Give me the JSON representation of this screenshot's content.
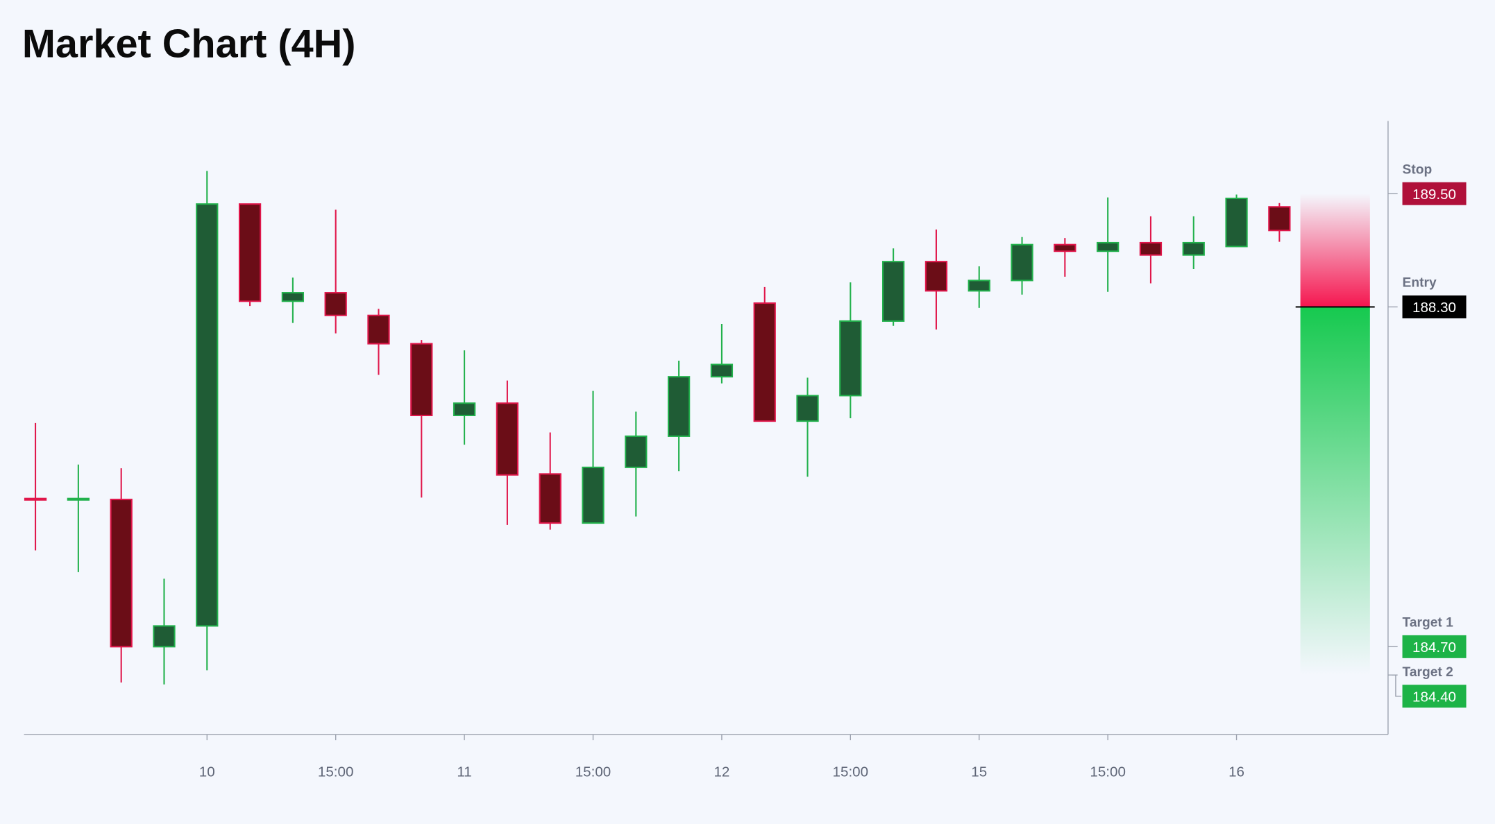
{
  "chart_data": {
    "type": "candlestick",
    "title": "Market Chart (4H)",
    "categories": [
      null,
      null,
      null,
      null,
      "10",
      null,
      null,
      "15:00",
      null,
      null,
      "11",
      null,
      null,
      "15:00",
      null,
      null,
      "12",
      null,
      null,
      "15:00",
      null,
      null,
      "15",
      null,
      null,
      "15:00",
      null,
      null,
      "16",
      null
    ],
    "open": [
      186.27,
      186.26,
      186.26,
      184.7,
      184.92,
      189.39,
      188.36,
      188.45,
      188.21,
      187.91,
      187.15,
      187.28,
      186.53,
      186.01,
      186.6,
      186.93,
      187.56,
      188.34,
      187.09,
      187.36,
      188.15,
      188.78,
      188.47,
      188.58,
      188.96,
      188.89,
      188.98,
      188.85,
      188.94,
      189.36
    ],
    "high": [
      187.07,
      186.63,
      186.59,
      185.42,
      189.74,
      189.39,
      188.61,
      189.33,
      188.28,
      187.95,
      187.84,
      187.52,
      186.97,
      187.41,
      187.19,
      187.73,
      188.12,
      188.51,
      187.55,
      188.56,
      188.92,
      189.12,
      188.73,
      189.04,
      189.03,
      189.46,
      189.26,
      189.26,
      189.49,
      189.4
    ],
    "low": [
      185.72,
      185.49,
      184.32,
      184.3,
      184.45,
      188.31,
      188.13,
      188.02,
      187.58,
      186.28,
      186.84,
      185.99,
      185.94,
      186.01,
      186.08,
      186.56,
      187.49,
      187.09,
      186.5,
      187.12,
      188.1,
      188.06,
      188.29,
      188.43,
      188.62,
      188.46,
      188.55,
      188.7,
      188.94,
      188.99
    ],
    "close": [
      186.26,
      186.27,
      184.7,
      184.92,
      189.39,
      188.36,
      188.45,
      188.21,
      187.91,
      187.15,
      187.28,
      186.52,
      186.01,
      186.6,
      186.93,
      187.56,
      187.69,
      187.09,
      187.36,
      188.15,
      188.78,
      188.47,
      188.58,
      188.96,
      188.89,
      188.98,
      188.85,
      188.98,
      189.45,
      189.11
    ],
    "up_color": "#22b14c",
    "down_color": "#e0164a",
    "ylim": [
      183.77,
      190.27
    ],
    "levels": [
      {
        "name": "Stop",
        "value": 189.5,
        "label": "189.50",
        "color": "#b0103a"
      },
      {
        "name": "Entry",
        "value": 188.3,
        "label": "188.30",
        "color": "#000000"
      },
      {
        "name": "Target 1",
        "value": 184.7,
        "label": "184.70",
        "color": "#1db347"
      },
      {
        "name": "Target 2",
        "value": 184.4,
        "label": "184.40",
        "color": "#1db347"
      }
    ]
  }
}
